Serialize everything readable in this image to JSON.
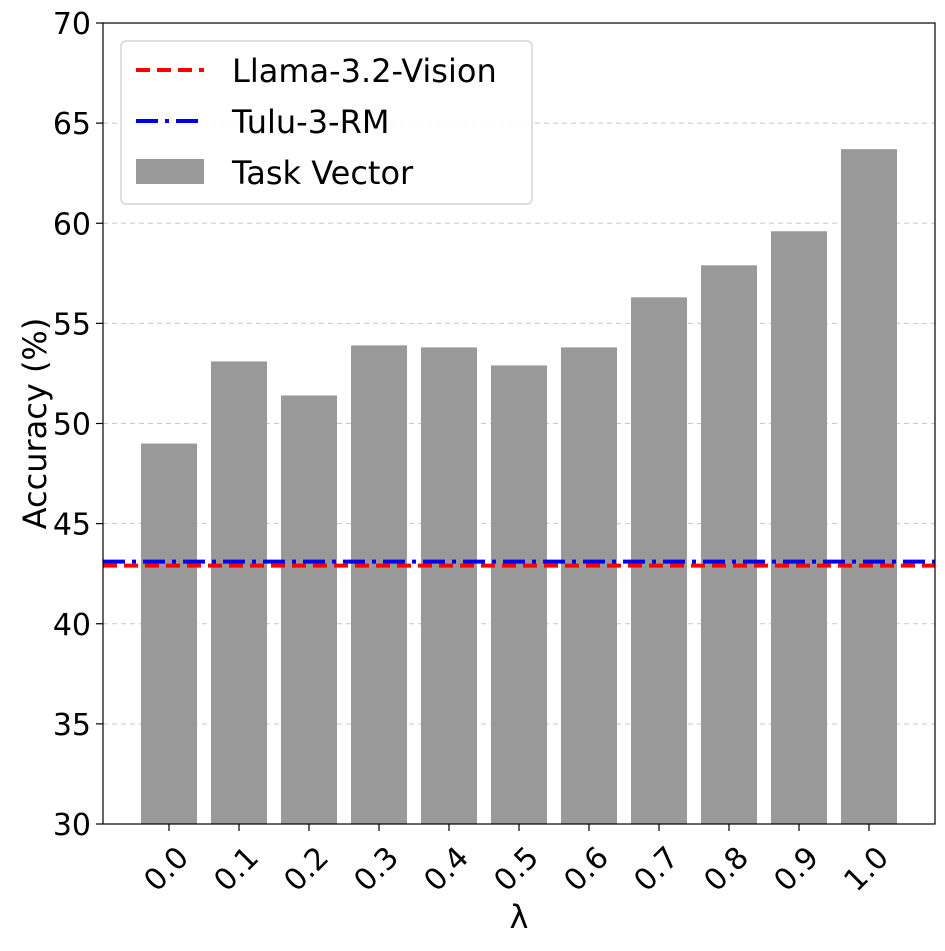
{
  "chart_data": {
    "type": "bar",
    "categories": [
      "0.0",
      "0.1",
      "0.2",
      "0.3",
      "0.4",
      "0.5",
      "0.6",
      "0.7",
      "0.8",
      "0.9",
      "1.0"
    ],
    "values": [
      49.0,
      53.1,
      51.4,
      53.9,
      53.8,
      52.9,
      53.8,
      56.3,
      57.9,
      59.6,
      63.7
    ],
    "bar_series_name": "Task Vector",
    "bar_color": "#999999",
    "reference_lines": [
      {
        "name": "Llama-3.2-Vision",
        "value": 42.9,
        "color": "#ff0000",
        "style": "dashed"
      },
      {
        "name": "Tulu-3-RM",
        "value": 43.1,
        "color": "#0000ee",
        "style": "dashdot"
      }
    ],
    "xlabel": "λ",
    "ylabel": "Accuracy (%)",
    "ylim": [
      30,
      70
    ],
    "yticks": [
      "30",
      "35",
      "40",
      "45",
      "50",
      "55",
      "60",
      "65",
      "70"
    ],
    "grid": "horizontal dashed",
    "legend_position": "top-left"
  }
}
